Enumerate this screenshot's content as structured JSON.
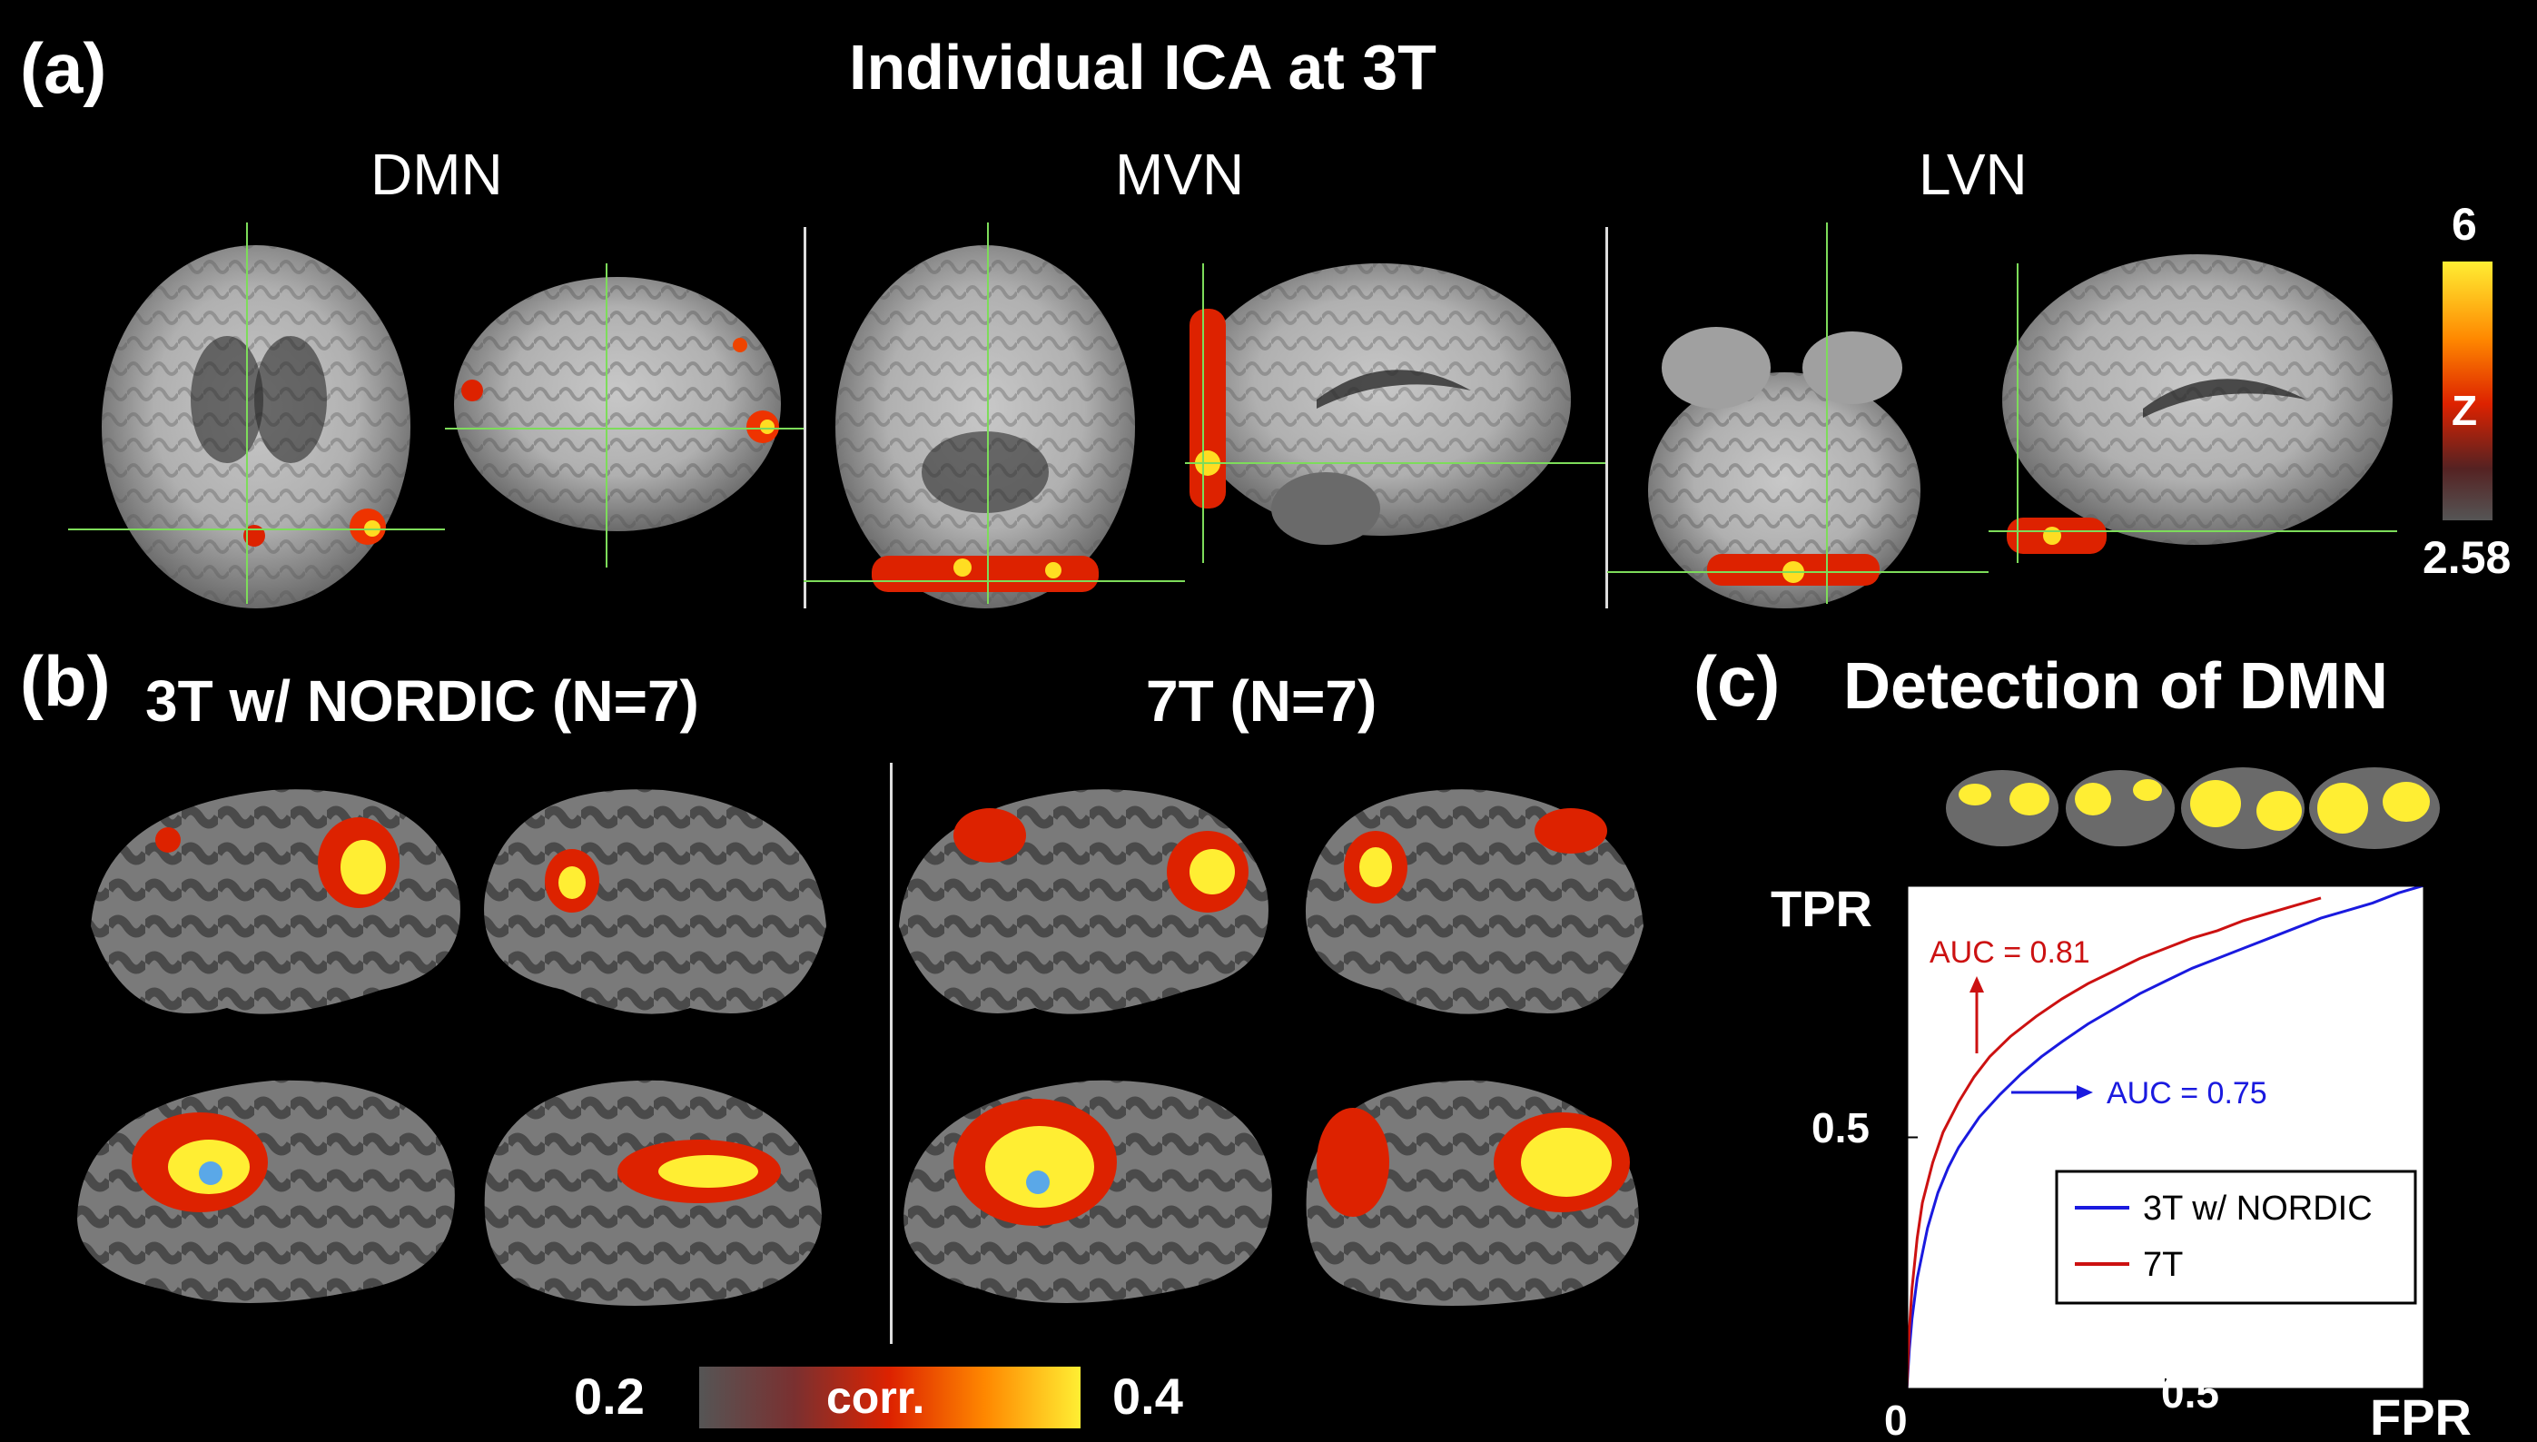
{
  "panel_a": {
    "letter": "(a)",
    "title": "Individual ICA at 3T",
    "networks": [
      "DMN",
      "MVN",
      "LVN"
    ],
    "colorbar": {
      "max": "6",
      "label": "Z",
      "min": "2.58"
    }
  },
  "panel_b": {
    "letter": "(b)",
    "left_title": "3T w/ NORDIC (N=7)",
    "right_title": "7T (N=7)",
    "colorbar": {
      "min": "0.2",
      "label": "corr.",
      "max": "0.4"
    }
  },
  "panel_c": {
    "letter": "(c)",
    "title": "Detection of DMN"
  },
  "chart_data": {
    "type": "line",
    "title": "Detection of DMN",
    "xlabel": "FPR",
    "ylabel": "TPR",
    "xlim": [
      0,
      1
    ],
    "ylim": [
      0,
      1
    ],
    "x_ticks": [
      "0",
      "0.5"
    ],
    "y_ticks": [
      "0.5"
    ],
    "legend_position": "bottom-right",
    "series": [
      {
        "name": "3T w/ NORDIC",
        "color": "#1a1adf",
        "annotation": "AUC = 0.75",
        "x": [
          0,
          0.005,
          0.01,
          0.02,
          0.04,
          0.06,
          0.08,
          0.1,
          0.14,
          0.18,
          0.22,
          0.26,
          0.3,
          0.35,
          0.4,
          0.45,
          0.5,
          0.55,
          0.6,
          0.65,
          0.7,
          0.75,
          0.8,
          0.85,
          0.9,
          0.95,
          1.0
        ],
        "y": [
          0,
          0.08,
          0.14,
          0.22,
          0.32,
          0.39,
          0.44,
          0.48,
          0.54,
          0.585,
          0.625,
          0.66,
          0.69,
          0.725,
          0.755,
          0.785,
          0.81,
          0.835,
          0.855,
          0.875,
          0.895,
          0.915,
          0.935,
          0.95,
          0.965,
          0.985,
          1.0
        ]
      },
      {
        "name": "7T",
        "color": "#cc1111",
        "annotation": "AUC = 0.81",
        "x": [
          0,
          0.005,
          0.01,
          0.02,
          0.03,
          0.05,
          0.07,
          0.1,
          0.13,
          0.16,
          0.2,
          0.25,
          0.3,
          0.35,
          0.4,
          0.45,
          0.5,
          0.55,
          0.6,
          0.65,
          0.7,
          0.75,
          0.8
        ],
        "y": [
          0,
          0.12,
          0.2,
          0.3,
          0.37,
          0.45,
          0.51,
          0.57,
          0.62,
          0.66,
          0.7,
          0.74,
          0.775,
          0.805,
          0.83,
          0.855,
          0.875,
          0.895,
          0.91,
          0.93,
          0.945,
          0.96,
          0.975
        ]
      }
    ]
  },
  "colors": {
    "background": "#000000",
    "activation_yellow": "#ffee33",
    "activation_red": "#dd2200",
    "cortex_dark": "#4a4a4a",
    "cortex_light": "#8a8a8a",
    "marker_blue": "#5aa8e8",
    "crosshair": "#7ddc5a"
  }
}
